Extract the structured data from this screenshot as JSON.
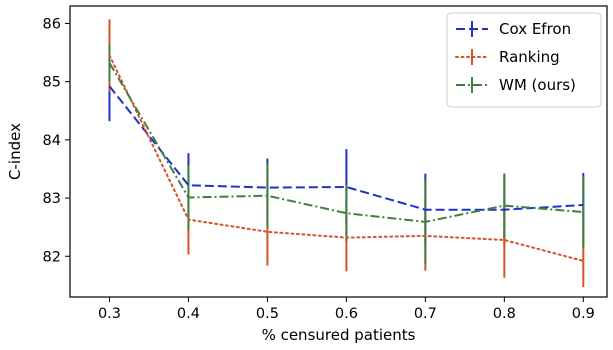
{
  "chart_data": {
    "type": "line",
    "xlabel": "% censured patients",
    "ylabel": "C-index",
    "xlim": [
      0.25,
      0.93
    ],
    "ylim": [
      81.3,
      86.3
    ],
    "x": [
      0.3,
      0.4,
      0.5,
      0.6,
      0.7,
      0.8,
      0.9
    ],
    "x_tick_labels": [
      "0.3",
      "0.4",
      "0.5",
      "0.6",
      "0.7",
      "0.8",
      "0.9"
    ],
    "y_ticks": [
      82,
      83,
      84,
      85,
      86
    ],
    "y_tick_labels": [
      "82",
      "83",
      "84",
      "85",
      "86"
    ],
    "grid": false,
    "legend_position": "top-right",
    "series": [
      {
        "name": "Cox Efron",
        "color": "#2232c8",
        "linestyle": "dashed",
        "values": [
          84.92,
          83.22,
          83.18,
          83.19,
          82.8,
          82.8,
          82.88
        ],
        "errors": [
          0.6,
          0.55,
          0.5,
          0.65,
          0.62,
          0.62,
          0.55
        ]
      },
      {
        "name": "Ranking",
        "color": "#d4532a",
        "linestyle": "dotted",
        "values": [
          85.45,
          82.63,
          82.42,
          82.32,
          82.35,
          82.28,
          81.92
        ],
        "errors": [
          0.62,
          0.6,
          0.58,
          0.58,
          0.6,
          0.65,
          0.45
        ]
      },
      {
        "name": "WM (ours)",
        "color": "#3f7f3f",
        "linestyle": "dashdot",
        "values": [
          85.32,
          83.01,
          83.04,
          82.74,
          82.59,
          82.87,
          82.76
        ],
        "errors": [
          0.32,
          0.55,
          0.55,
          0.48,
          0.72,
          0.55,
          0.62
        ]
      }
    ]
  }
}
